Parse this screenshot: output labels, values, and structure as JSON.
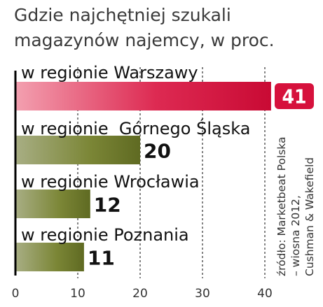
{
  "title": "Gdzie najchętniej szukali magazynów najemcy, w proc.",
  "source": [
    "źródło: Marketbeat Polska",
    "– wiosna 2012,",
    "Cushman & Wakefield"
  ],
  "colors": {
    "highlight_bar": "#d6113c",
    "bar": "#6e7a2c",
    "highlight_badge": "#d6113c",
    "axis": "#000000",
    "grid": "#333333"
  },
  "chart_data": {
    "type": "bar",
    "orientation": "horizontal",
    "title": "Gdzie najchętniej szukali magazynów najemcy, w proc.",
    "categories": [
      "w regionie Warszawy",
      "w regionie  Górnego Śląska",
      "w regionie Wrocławia",
      "w regionie Poznania"
    ],
    "values": [
      41,
      20,
      12,
      11
    ],
    "value_labels": [
      "41",
      "20",
      "12",
      "11"
    ],
    "highlight_index": 0,
    "xlim": [
      0,
      41
    ],
    "xticks": [
      0,
      10,
      20,
      30,
      40
    ],
    "xtick_labels": [
      "0",
      "10",
      "20",
      "30",
      "40"
    ],
    "grid": "vertical-dashed",
    "legend": "none"
  }
}
